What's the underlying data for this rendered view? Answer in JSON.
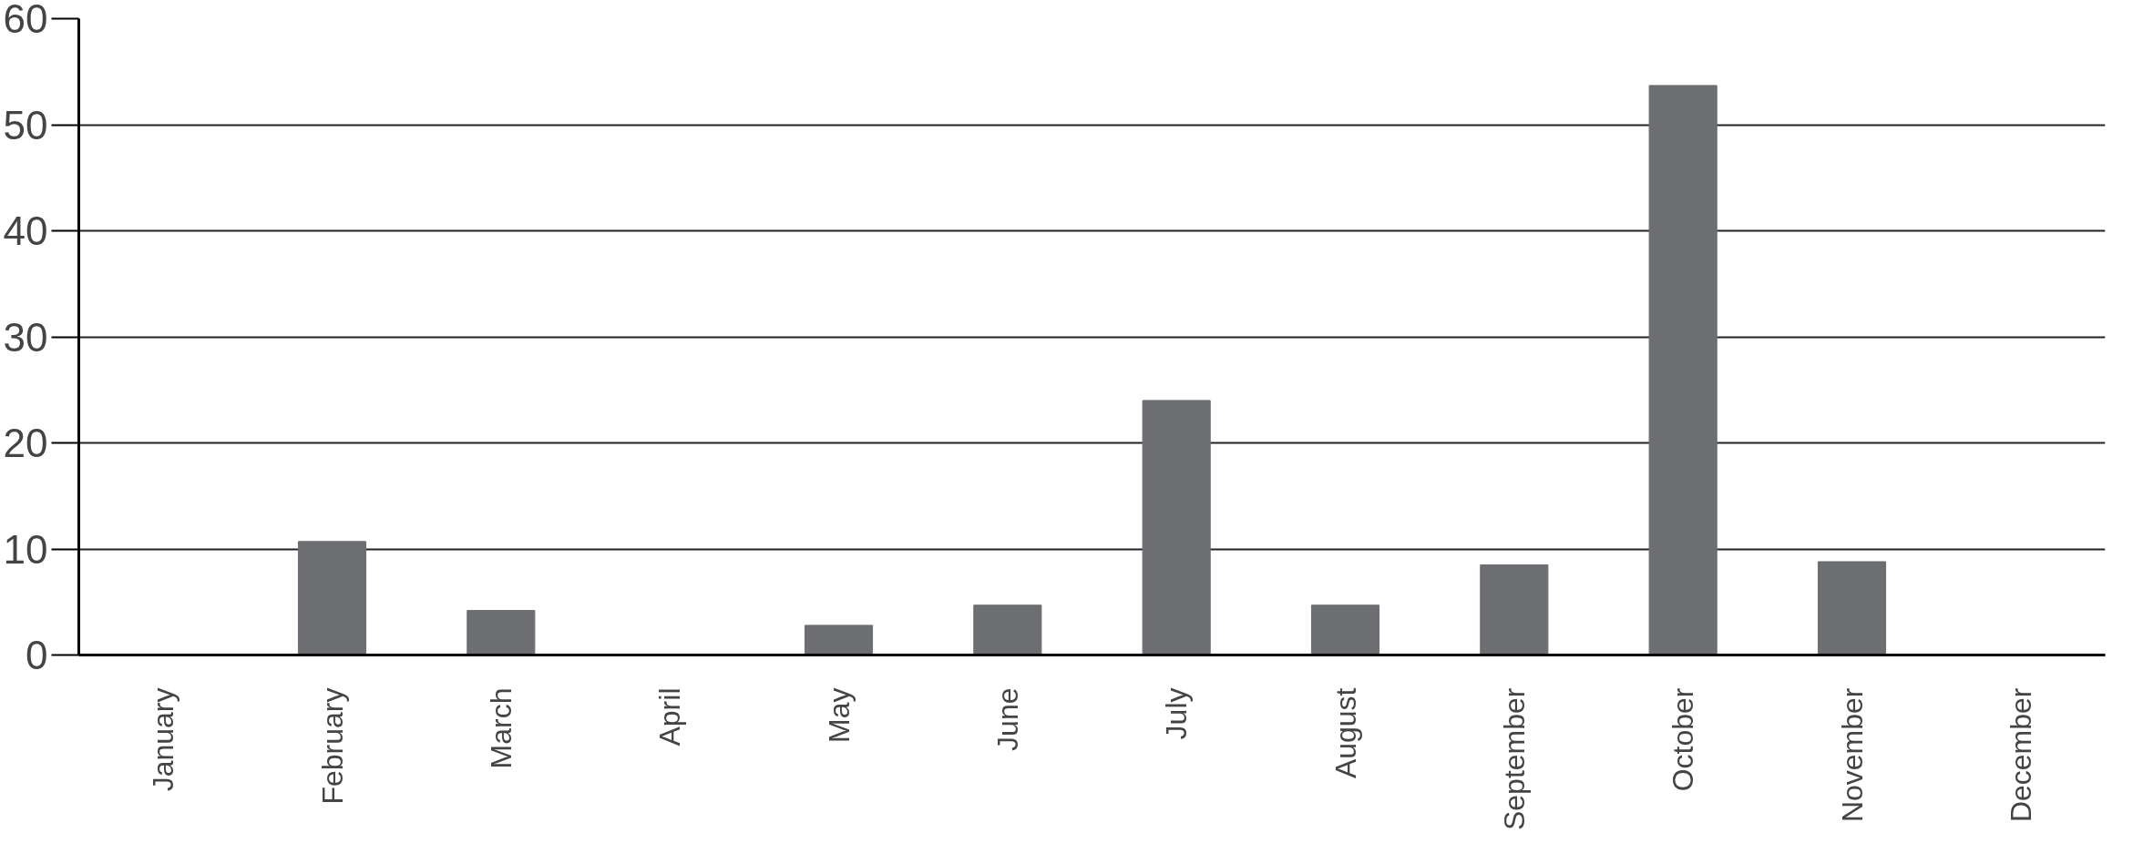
{
  "chart_data": {
    "type": "bar",
    "categories": [
      "January",
      "February",
      "March",
      "April",
      "May",
      "June",
      "July",
      "August",
      "September",
      "October",
      "November",
      "December"
    ],
    "values": [
      0,
      10.7,
      4.2,
      0,
      2.8,
      4.7,
      24,
      4.7,
      8.5,
      53.7,
      8.8,
      0
    ],
    "color": "#6d6e71",
    "ylim": [
      0,
      60
    ],
    "yticks": [
      0,
      10,
      20,
      30,
      40,
      50,
      60
    ],
    "grid": "y"
  }
}
